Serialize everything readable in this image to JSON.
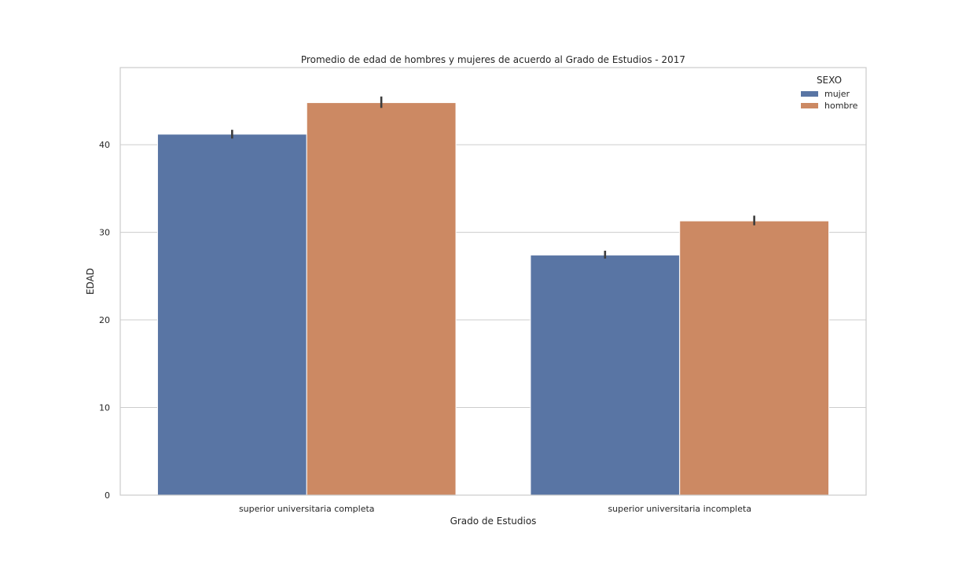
{
  "chart_data": {
    "type": "bar",
    "title": "Promedio de edad de hombres y mujeres de acuerdo al Grado de Estudios - 2017",
    "xlabel": "Grado de Estudios",
    "ylabel": "EDAD",
    "categories": [
      "superior universitaria completa",
      "superior universitaria incompleta"
    ],
    "series": [
      {
        "name": "mujer",
        "color": "#5975a4",
        "values": [
          41.2,
          27.4
        ],
        "error": [
          [
            40.7,
            41.7
          ],
          [
            27.0,
            27.9
          ]
        ]
      },
      {
        "name": "hombre",
        "color": "#cc8963",
        "values": [
          44.8,
          31.3
        ],
        "error": [
          [
            44.2,
            45.5
          ],
          [
            30.8,
            31.9
          ]
        ]
      }
    ],
    "ylim": [
      0,
      48.8
    ],
    "yticks": [
      0,
      10,
      20,
      30,
      40
    ],
    "grid": true,
    "legend": {
      "title": "SEXO",
      "position": "top-right"
    }
  }
}
